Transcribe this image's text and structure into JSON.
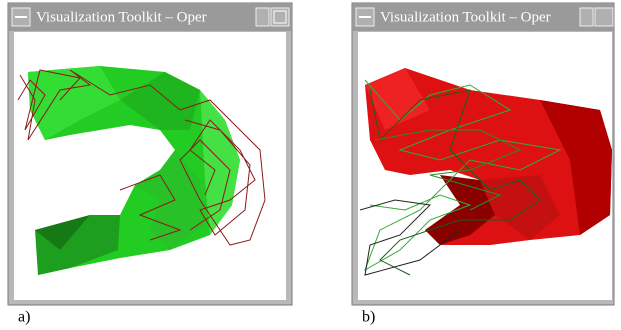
{
  "panels": [
    {
      "window_title": "Visualization Toolkit – Oper",
      "label": "a)"
    },
    {
      "window_title": "Visualization Toolkit – Oper",
      "label": "b)"
    }
  ]
}
